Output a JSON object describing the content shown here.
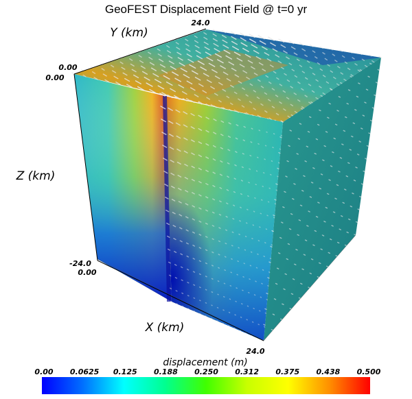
{
  "title": "GeoFEST Displacement Field @ t=0 yr",
  "axes": {
    "x_label": "X (km)",
    "y_label": "Y (km)",
    "z_label": "Z (km)",
    "x_ticks": [
      "0.00",
      "24.0"
    ],
    "y_ticks": [
      "0.00",
      "24.0"
    ],
    "z_ticks": [
      "0.00",
      "-24.0"
    ]
  },
  "colorbar": {
    "title": "displacement (m)",
    "ticks": [
      "0.00",
      "0.0625",
      "0.125",
      "0.188",
      "0.250",
      "0.312",
      "0.375",
      "0.438",
      "0.500"
    ],
    "range": [
      0,
      0.5
    ],
    "colors": [
      "#0000ff",
      "#00a0ff",
      "#00ffff",
      "#00ff80",
      "#80ff00",
      "#ffff00",
      "#ffa000",
      "#ff0000"
    ]
  },
  "colors": {
    "low": "#1a2fc8",
    "mid": "#2fbfb4",
    "teal": "#1f8f86",
    "high": "#e06a18"
  }
}
